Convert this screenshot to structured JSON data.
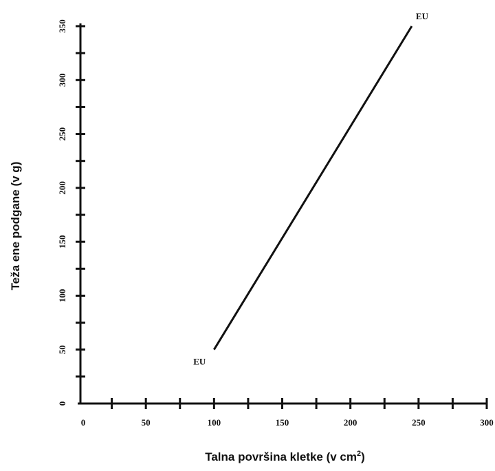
{
  "chart_data": {
    "type": "line",
    "xlabel": "Talna površina kletke (v cm",
    "xlabel_sup": "2",
    "xlabel_suffix": ")",
    "ylabel": "Teža ene podgane (v g)",
    "xlim": [
      0,
      300
    ],
    "ylim": [
      0,
      350
    ],
    "x_ticks_major": [
      0,
      50,
      100,
      150,
      200,
      250,
      300
    ],
    "x_ticks_minor": [
      25,
      75,
      125,
      175,
      225,
      275
    ],
    "y_ticks_major": [
      0,
      50,
      100,
      150,
      200,
      250,
      300,
      350
    ],
    "y_ticks_minor": [
      25,
      75,
      125,
      175,
      225,
      275,
      325
    ],
    "grid": false,
    "series": [
      {
        "values": [
          {
            "x": 100,
            "y": 50
          },
          {
            "x": 245,
            "y": 350
          }
        ]
      }
    ],
    "annotations": [
      {
        "text": "EU",
        "x": 100,
        "y": 50,
        "position": "left-below"
      },
      {
        "text": "EU",
        "x": 245,
        "y": 350,
        "position": "right-above"
      }
    ]
  }
}
